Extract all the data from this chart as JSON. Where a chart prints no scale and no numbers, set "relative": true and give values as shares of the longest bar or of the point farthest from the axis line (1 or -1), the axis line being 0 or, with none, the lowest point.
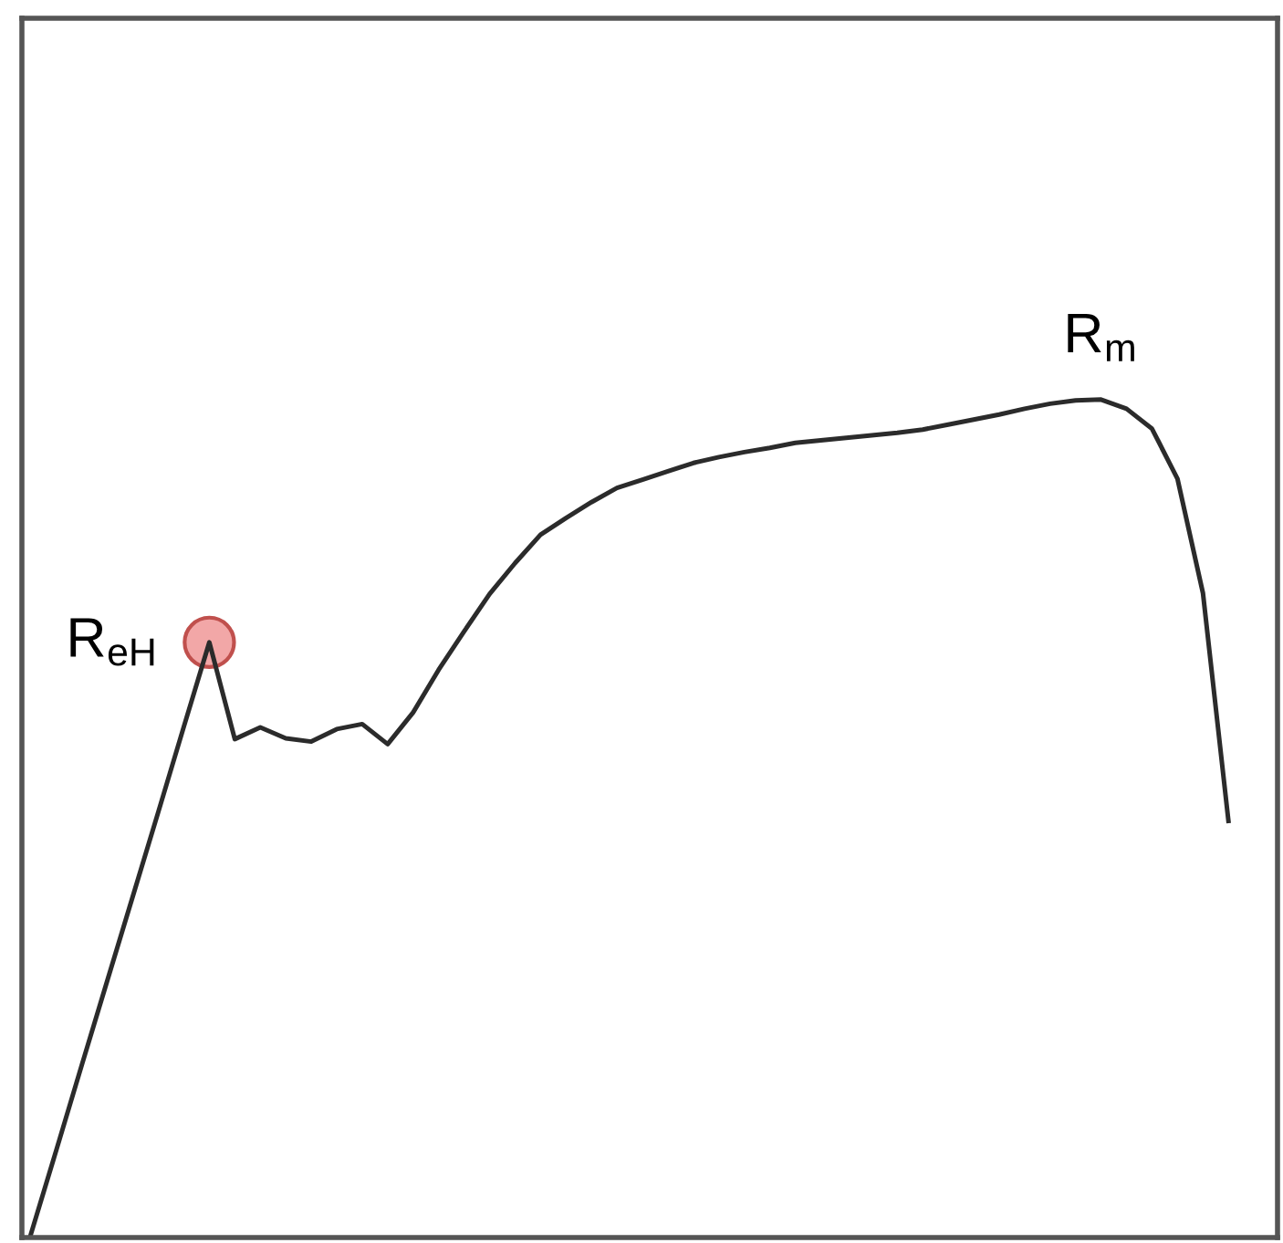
{
  "chart_data": {
    "type": "line",
    "relative": true,
    "tick_labels": false,
    "grid": false,
    "legend": false,
    "marker": "none",
    "line_style": "solid",
    "categories": [
      null,
      null,
      null,
      null,
      null,
      null,
      null,
      null,
      null,
      null,
      null,
      null,
      null,
      null,
      null,
      null,
      null,
      null,
      null,
      null,
      null,
      null,
      null,
      null,
      null,
      null,
      null,
      null,
      null,
      null,
      null,
      null,
      null,
      null,
      null,
      null,
      null,
      null,
      null,
      null,
      null,
      null,
      null,
      null,
      null,
      null,
      null,
      null
    ],
    "series": [
      {
        "color": "#2b2b2b",
        "values": [
          0,
          0.101,
          0.203,
          0.304,
          0.405,
          0.506,
          0.608,
          0.709,
          0.593,
          0.607,
          0.594,
          0.59,
          0.605,
          0.611,
          0.587,
          0.625,
          0.676,
          0.722,
          0.767,
          0.804,
          0.838,
          0.858,
          0.877,
          0.894,
          0.904,
          0.914,
          0.924,
          0.931,
          0.937,
          0.942,
          0.948,
          0.951,
          0.954,
          0.957,
          0.96,
          0.964,
          0.97,
          0.976,
          0.982,
          0.989,
          0.995,
          0.999,
          1.0,
          0.989,
          0.965,
          0.905,
          0.768,
          0.495
        ]
      }
    ],
    "annotations": [
      "R$_{eH}$",
      "R$_{m}$"
    ]
  }
}
